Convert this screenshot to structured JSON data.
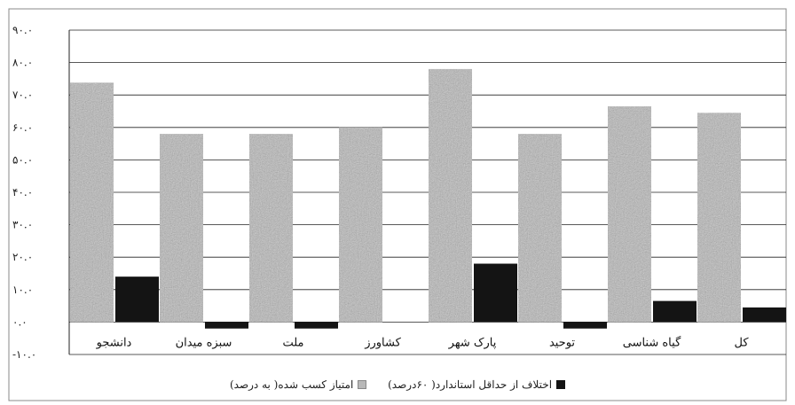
{
  "chart_data": {
    "type": "bar",
    "categories": [
      "دانشجو",
      "سبزه میدان",
      "ملت",
      "کشاورز",
      "پارک شهر",
      "توحید",
      "گیاه شناسی",
      "کل"
    ],
    "series": [
      {
        "name": "امتیاز کسب شده( به درصد)",
        "values": [
          73.8,
          58,
          58,
          60,
          78,
          58,
          66.5,
          64.5
        ]
      },
      {
        "name": "اختلاف از حداقل استاندارد( ۶۰درصد)",
        "values": [
          14,
          -2,
          -2,
          0,
          18,
          -2,
          6.5,
          4.5
        ]
      }
    ],
    "ylim": [
      -10,
      90
    ],
    "yticks": [
      -10,
      0,
      10,
      20,
      30,
      40,
      50,
      60,
      70,
      80,
      90
    ],
    "ytick_labels": [
      "-۱۰.۰",
      "۰.۰",
      "۱۰.۰",
      "۲۰.۰",
      "۳۰.۰",
      "۴۰.۰",
      "۵۰.۰",
      "۶۰.۰",
      "۷۰.۰",
      "۸۰.۰",
      "۹۰.۰"
    ],
    "grid": true,
    "legend_position": "bottom",
    "colors": {
      "score": "#b5b5b5",
      "diff": "#141414",
      "grid": "#222222"
    }
  },
  "legend": {
    "score_label": "امتیاز کسب شده( به درصد)",
    "diff_label": "اختلاف از حداقل استاندارد( ۶۰درصد)"
  }
}
